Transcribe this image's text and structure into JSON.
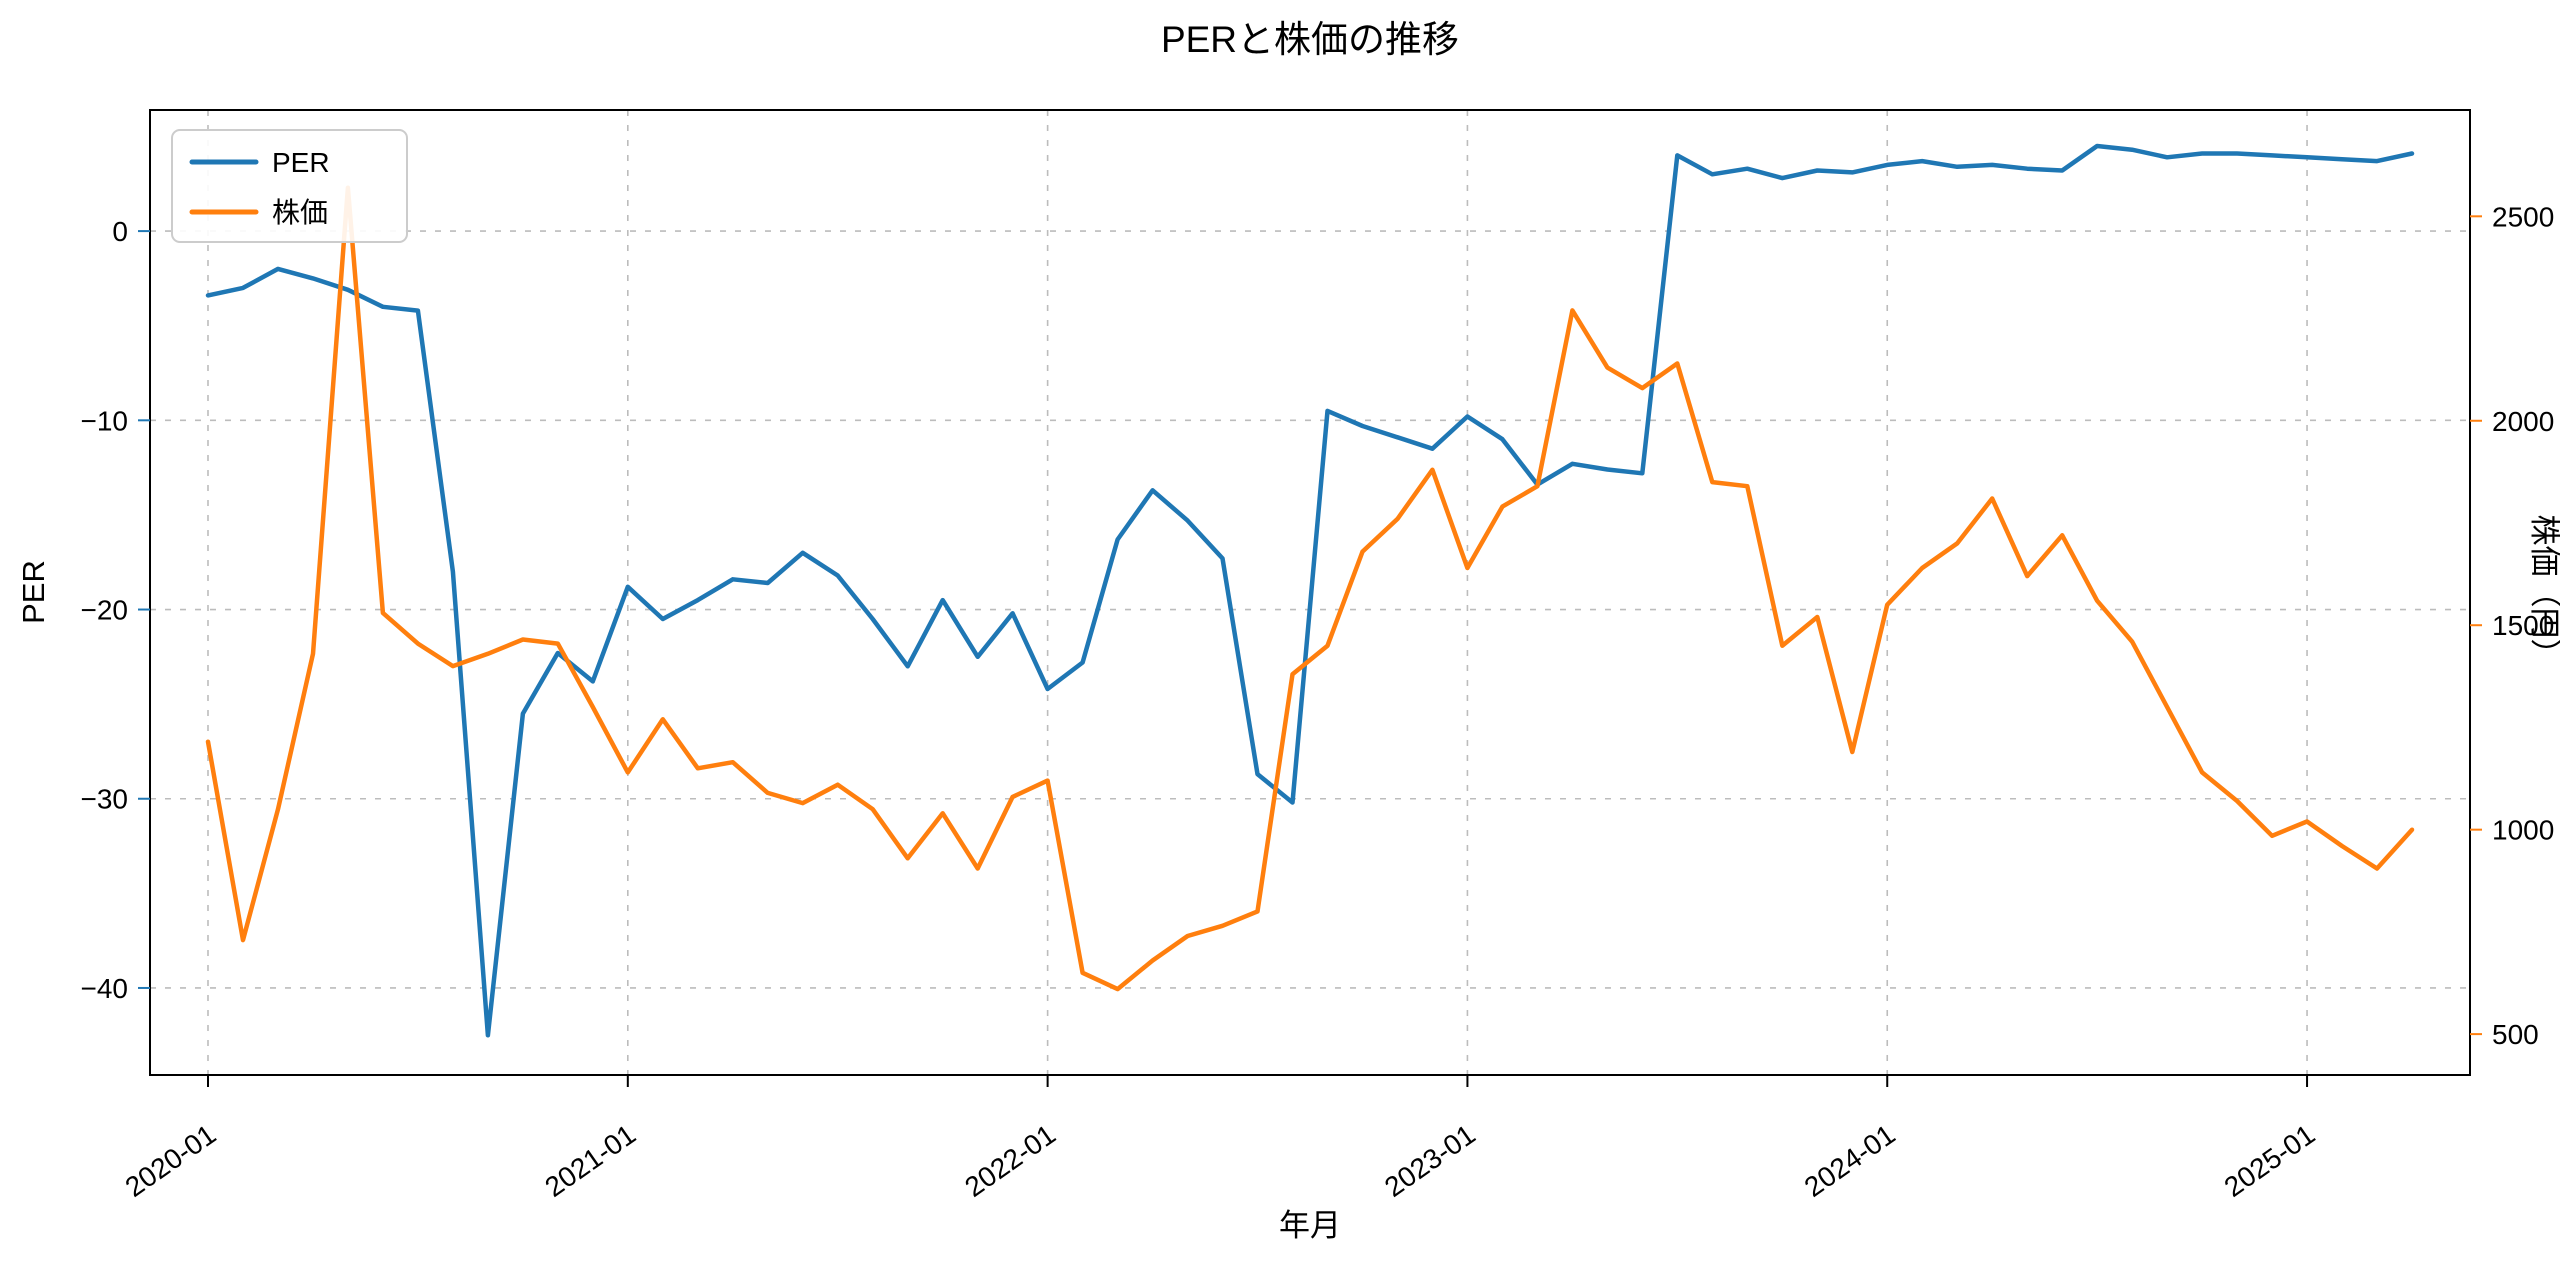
{
  "figure": {
    "title": "PERと株価の推移",
    "xlabel": "年月",
    "ylabel_left": "PER",
    "ylabel_right": "株価（円）",
    "background_color": "#ffffff"
  },
  "legend": {
    "position": "upper left",
    "items": [
      {
        "label": "PER",
        "color": "#1f77b4"
      },
      {
        "label": "株価",
        "color": "#ff7f0e"
      }
    ]
  },
  "chart_data": {
    "type": "line",
    "title": "PERと株価の推移",
    "xlabel": "年月",
    "grid": true,
    "legend_position": "upper left",
    "x_tick_labels": [
      "2020-01",
      "2021-01",
      "2022-01",
      "2023-01",
      "2024-01",
      "2025-01"
    ],
    "x": [
      "2020-01",
      "2020-02",
      "2020-03",
      "2020-04",
      "2020-05",
      "2020-06",
      "2020-07",
      "2020-08",
      "2020-09",
      "2020-10",
      "2020-11",
      "2020-12",
      "2021-01",
      "2021-02",
      "2021-03",
      "2021-04",
      "2021-05",
      "2021-06",
      "2021-07",
      "2021-08",
      "2021-09",
      "2021-10",
      "2021-11",
      "2021-12",
      "2022-01",
      "2022-02",
      "2022-03",
      "2022-04",
      "2022-05",
      "2022-06",
      "2022-07",
      "2022-08",
      "2022-09",
      "2022-10",
      "2022-11",
      "2022-12",
      "2023-01",
      "2023-02",
      "2023-03",
      "2023-04",
      "2023-05",
      "2023-06",
      "2023-07",
      "2023-08",
      "2023-09",
      "2023-10",
      "2023-11",
      "2023-12",
      "2024-01",
      "2024-02",
      "2024-03",
      "2024-04",
      "2024-05",
      "2024-06",
      "2024-07",
      "2024-08",
      "2024-09",
      "2024-10",
      "2024-11",
      "2024-12",
      "2025-01",
      "2025-02",
      "2025-03",
      "2025-04"
    ],
    "series": [
      {
        "name": "PER",
        "axis": "left",
        "color": "#1f77b4",
        "ylabel": "PER",
        "ylim": [
          -44.6,
          6.4
        ],
        "yticks": [
          0,
          -10,
          -20,
          -30,
          -40
        ],
        "values": [
          -3.4,
          -3.0,
          -2.0,
          -2.5,
          -3.1,
          -4.0,
          -4.2,
          -18.0,
          -42.5,
          -25.5,
          -22.3,
          -23.8,
          -18.8,
          -20.5,
          -19.5,
          -18.4,
          -18.6,
          -17.0,
          -18.2,
          -20.5,
          -23.0,
          -19.5,
          -22.5,
          -20.2,
          -24.2,
          -22.8,
          -16.3,
          -13.7,
          -15.3,
          -17.3,
          -28.7,
          -30.2,
          -9.5,
          -10.3,
          -10.9,
          -11.5,
          -9.8,
          -11.0,
          -13.4,
          -12.3,
          -12.6,
          -12.8,
          4.0,
          3.0,
          3.3,
          2.8,
          3.2,
          3.1,
          3.5,
          3.7,
          3.4,
          3.5,
          3.3,
          3.2,
          4.5,
          4.3,
          3.9,
          4.1,
          4.1,
          4.0,
          3.9,
          3.8,
          3.7,
          4.1
        ]
      },
      {
        "name": "株価",
        "axis": "right",
        "color": "#ff7f0e",
        "ylabel": "株価（円）",
        "ylim": [
          400,
          2760
        ],
        "yticks": [
          2500,
          2000,
          1500,
          1000,
          500
        ],
        "values": [
          1215,
          730,
          1050,
          1430,
          2570,
          1530,
          1455,
          1400,
          1430,
          1465,
          1455,
          1300,
          1140,
          1270,
          1150,
          1165,
          1090,
          1065,
          1110,
          1050,
          930,
          1040,
          905,
          1080,
          1120,
          650,
          610,
          680,
          740,
          765,
          800,
          1380,
          1450,
          1680,
          1760,
          1880,
          1640,
          1790,
          1840,
          2270,
          2130,
          2080,
          2140,
          1850,
          1840,
          1450,
          1520,
          1190,
          1550,
          1640,
          1700,
          1810,
          1620,
          1720,
          1560,
          1460,
          1300,
          1140,
          1070,
          985,
          1020,
          960,
          905,
          1000
        ]
      }
    ]
  }
}
